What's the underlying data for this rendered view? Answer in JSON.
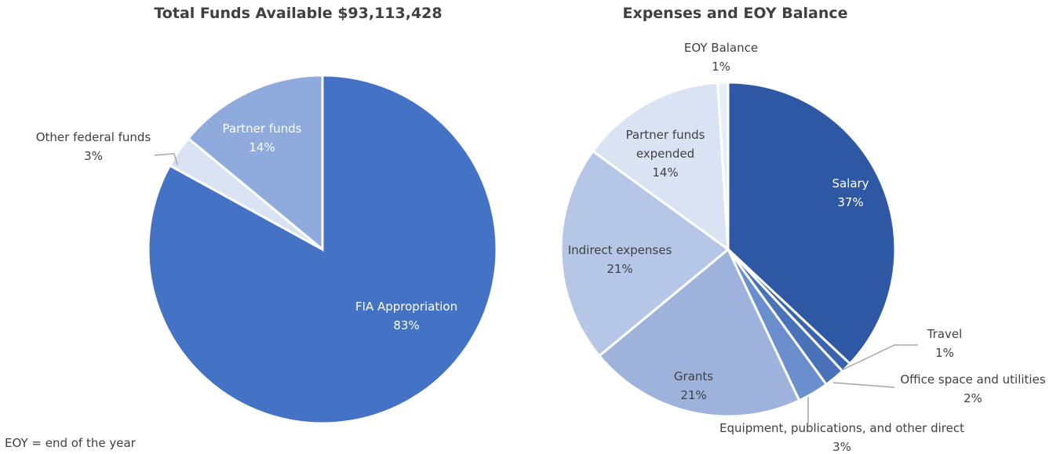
{
  "chart_data": [
    {
      "type": "pie",
      "title": "Total Funds Available $93,113,428",
      "categories": [
        "FIA Appropriation",
        "Other federal funds",
        "Partner funds"
      ],
      "values": [
        83,
        3,
        14
      ],
      "value_labels": [
        "83%",
        "3%",
        "14%"
      ],
      "colors": [
        "#4472c4",
        "#dae3f3",
        "#8faadc"
      ]
    },
    {
      "type": "pie",
      "title": "Expenses and EOY Balance",
      "categories": [
        "Salary",
        "Travel",
        "Office space and utilities",
        "Equipment, publications, and other direct",
        "Grants",
        "Indirect expenses",
        "Partner funds expended",
        "EOY Balance"
      ],
      "values": [
        37,
        1,
        2,
        3,
        21,
        21,
        14,
        1
      ],
      "value_labels": [
        "37%",
        "1%",
        "2%",
        "3%",
        "21%",
        "21%",
        "14%",
        "1%"
      ],
      "colors": [
        "#2f58a4",
        "#3a63ad",
        "#4a72b8",
        "#6b8fcc",
        "#9db3dc",
        "#b5c6e6",
        "#dae3f3",
        "#e8eef8"
      ]
    }
  ],
  "footnote": "EOY = end of the year"
}
